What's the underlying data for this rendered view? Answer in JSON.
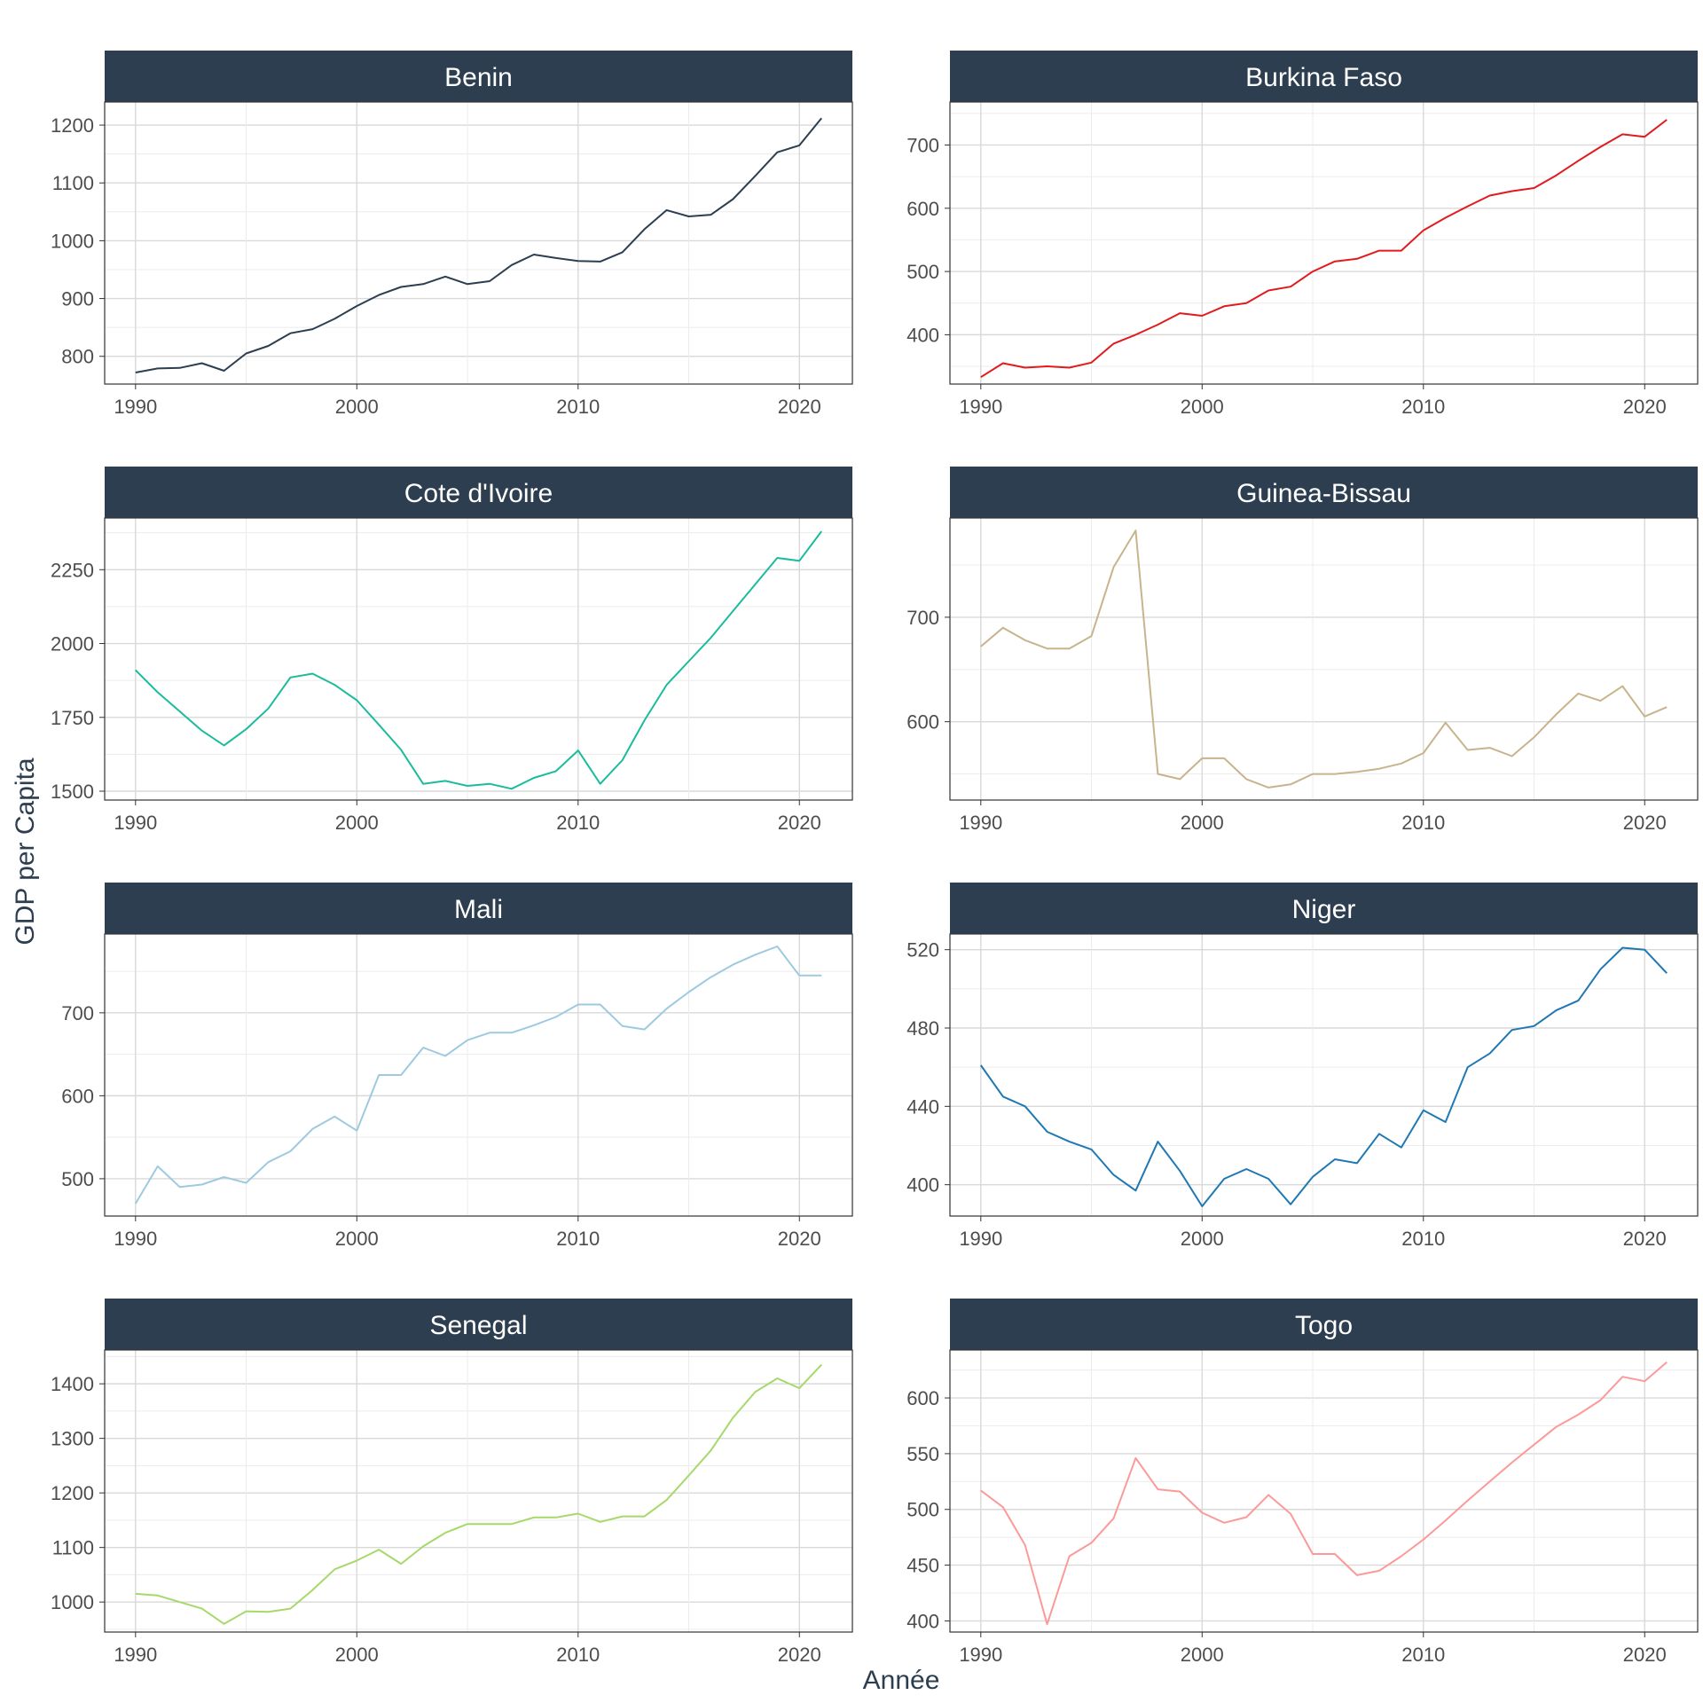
{
  "chart_data": {
    "type": "line",
    "xlabel": "Année",
    "ylabel": "GDP per Capita",
    "grid": true,
    "x": [
      1990,
      1991,
      1992,
      1993,
      1994,
      1995,
      1996,
      1997,
      1998,
      1999,
      2000,
      2001,
      2002,
      2003,
      2004,
      2005,
      2006,
      2007,
      2008,
      2009,
      2010,
      2011,
      2012,
      2013,
      2014,
      2015,
      2016,
      2017,
      2018,
      2019,
      2020,
      2021
    ],
    "xlim": [
      1990,
      2021
    ],
    "xticks": [
      1990,
      2000,
      2010,
      2020
    ],
    "strip_color": "#2c3e50",
    "panels": [
      {
        "name": "Benin",
        "color": "#2c3e50",
        "ylim": [
          752,
          1240
        ],
        "yticks": [
          800,
          900,
          1000,
          1100,
          1200
        ],
        "values": [
          772,
          779,
          780,
          788,
          775,
          805,
          818,
          840,
          847,
          865,
          887,
          906,
          920,
          925,
          938,
          925,
          930,
          958,
          976,
          970,
          965,
          964,
          980,
          1020,
          1053,
          1042,
          1045,
          1072,
          1112,
          1153,
          1165,
          1212
        ]
      },
      {
        "name": "Burkina Faso",
        "color": "#e31a1c",
        "ylim": [
          322,
          768
        ],
        "yticks": [
          400,
          500,
          600,
          700
        ],
        "values": [
          333,
          355,
          348,
          350,
          348,
          356,
          386,
          400,
          416,
          434,
          430,
          445,
          450,
          470,
          476,
          500,
          516,
          520,
          533,
          533,
          565,
          585,
          603,
          620,
          627,
          632,
          652,
          675,
          697,
          717,
          713,
          740
        ]
      },
      {
        "name": "Cote d'Ivoire",
        "color": "#1abc9c",
        "ylim": [
          1470,
          2425
        ],
        "yticks": [
          1500,
          1750,
          2000,
          2250
        ],
        "values": [
          1910,
          1835,
          1770,
          1705,
          1655,
          1710,
          1780,
          1885,
          1898,
          1860,
          1808,
          1725,
          1640,
          1525,
          1535,
          1518,
          1525,
          1508,
          1545,
          1568,
          1638,
          1525,
          1605,
          1740,
          1860,
          1940,
          2020,
          2110,
          2200,
          2290,
          2280,
          2380
        ]
      },
      {
        "name": "Guinea-Bissau",
        "color": "#c8b48c",
        "ylim": [
          525,
          795
        ],
        "yticks": [
          600,
          700
        ],
        "values": [
          672,
          690,
          678,
          670,
          670,
          682,
          748,
          783,
          550,
          545,
          565,
          565,
          545,
          537,
          540,
          550,
          550,
          552,
          555,
          560,
          570,
          599,
          573,
          575,
          567,
          585,
          607,
          627,
          620,
          634,
          605,
          614
        ]
      },
      {
        "name": "Mali",
        "color": "#9ecae1",
        "ylim": [
          455,
          795
        ],
        "yticks": [
          500,
          600,
          700
        ],
        "values": [
          470,
          515,
          490,
          493,
          502,
          495,
          520,
          533,
          560,
          575,
          558,
          625,
          625,
          658,
          648,
          667,
          676,
          676,
          685,
          695,
          710,
          710,
          684,
          680,
          705,
          725,
          743,
          758,
          770,
          780,
          745,
          745
        ]
      },
      {
        "name": "Niger",
        "color": "#1f78b4",
        "ylim": [
          384,
          528
        ],
        "yticks": [
          400,
          440,
          480,
          520
        ],
        "values": [
          461,
          445,
          440,
          427,
          422,
          418,
          405,
          397,
          422,
          407,
          389,
          403,
          408,
          403,
          390,
          404,
          413,
          411,
          426,
          419,
          438,
          432,
          460,
          467,
          479,
          481,
          489,
          494,
          510,
          521,
          520,
          508
        ]
      },
      {
        "name": "Senegal",
        "color": "#a6d96a",
        "ylim": [
          945,
          1462
        ],
        "yticks": [
          1000,
          1100,
          1200,
          1300,
          1400
        ],
        "values": [
          1015,
          1012,
          1000,
          988,
          960,
          983,
          982,
          988,
          1022,
          1060,
          1076,
          1096,
          1070,
          1102,
          1127,
          1143,
          1143,
          1143,
          1155,
          1155,
          1162,
          1147,
          1157,
          1157,
          1187,
          1232,
          1278,
          1338,
          1385,
          1410,
          1392,
          1435
        ]
      },
      {
        "name": "Togo",
        "color": "#fb9a99",
        "ylim": [
          390,
          643
        ],
        "yticks": [
          400,
          450,
          500,
          550,
          600
        ],
        "values": [
          517,
          502,
          468,
          397,
          458,
          470,
          492,
          546,
          518,
          516,
          497,
          488,
          493,
          513,
          496,
          460,
          460,
          441,
          445,
          458,
          473,
          490,
          508,
          525,
          542,
          558,
          574,
          585,
          598,
          619,
          615,
          632
        ]
      }
    ]
  }
}
